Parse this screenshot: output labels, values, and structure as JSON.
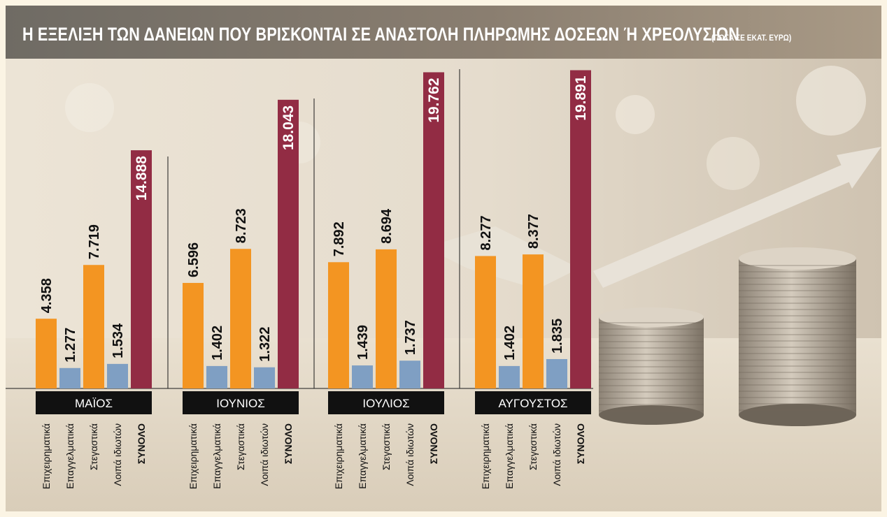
{
  "title": "Η ΕΞΕΛΙΞΗ ΤΩΝ ΔΑΝΕΙΩΝ ΠΟΥ ΒΡΙΣΚΟΝΤΑΙ ΣΕ ΑΝΑΣΤΟΛΗ ΠΛΗΡΩΜΗΣ ΔΟΣΕΩΝ Ή ΧΡΕΟΛΥΣΙΩΝ",
  "subtitle": "(ΠΟΣΑ ΣΕ ΕΚΑΤ. ΕΥΡΩ)",
  "colors": {
    "business": "#f39522",
    "professional": "#7f9fc3",
    "housing": "#f39522",
    "other_private": "#7f9fc3",
    "total": "#922c44",
    "month_band": "#111111"
  },
  "chart_data": {
    "type": "bar",
    "title": "Η ΕΞΕΛΙΞΗ ΤΩΝ ΔΑΝΕΙΩΝ ΠΟΥ ΒΡΙΣΚΟΝΤΑΙ ΣΕ ΑΝΑΣΤΟΛΗ ΠΛΗΡΩΜΗΣ ΔΟΣΕΩΝ Ή ΧΡΕΟΛΥΣΙΩΝ",
    "subtitle": "(ΠΟΣΑ ΣΕ ΕΚΑΤ. ΕΥΡΩ)",
    "categories": [
      "ΜΑΪΟΣ",
      "ΙΟΥΝΙΟΣ",
      "ΙΟΥΛΙΟΣ",
      "ΑΥΓΟΥΣΤΟΣ"
    ],
    "series": [
      {
        "name": "Επιχειρηματικά",
        "values": [
          4358,
          6596,
          7892,
          8277
        ],
        "labels": [
          "4.358",
          "6.596",
          "7.892",
          "8.277"
        ]
      },
      {
        "name": "Επαγγελματικά",
        "values": [
          1277,
          1402,
          1439,
          1402
        ],
        "labels": [
          "1.277",
          "1.402",
          "1.439",
          "1.402"
        ]
      },
      {
        "name": "Στεγαστικά",
        "values": [
          7719,
          8723,
          8694,
          8377
        ],
        "labels": [
          "7.719",
          "8.723",
          "8.694",
          "8.377"
        ]
      },
      {
        "name": "Λοιπά ιδιωτών",
        "values": [
          1534,
          1322,
          1737,
          1835
        ],
        "labels": [
          "1.534",
          "1.322",
          "1.737",
          "1.835"
        ]
      },
      {
        "name": "ΣΥΝΟΛΟ",
        "values": [
          14888,
          18043,
          19762,
          19891
        ],
        "labels": [
          "14.888",
          "18.043",
          "19.762",
          "19.891"
        ]
      }
    ],
    "ylim": [
      0,
      20000
    ],
    "grid": false,
    "legend": "none"
  }
}
